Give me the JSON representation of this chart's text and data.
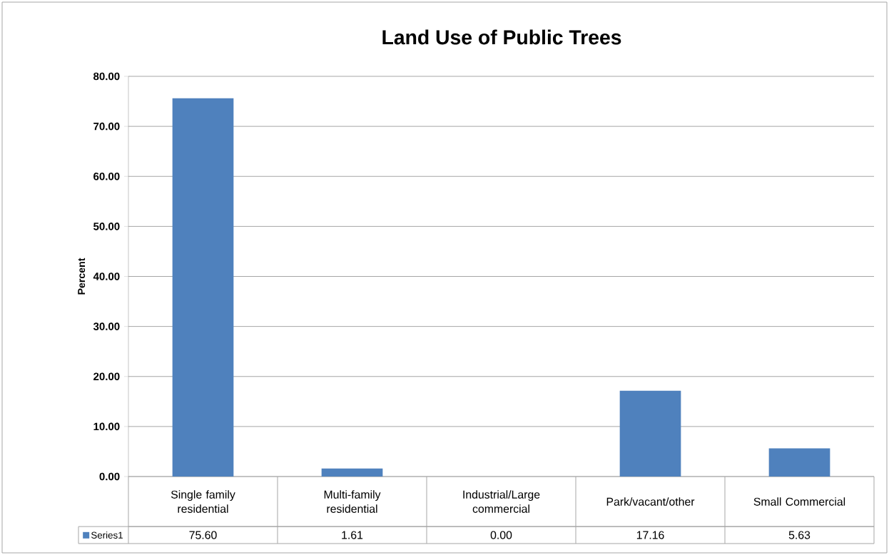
{
  "chart_data": {
    "type": "bar",
    "title": "Land Use of Public Trees",
    "ylabel": "Percent",
    "categories": [
      "Single family residential",
      "Multi-family residential",
      "Industrial/Large commercial",
      "Park/vacant/other",
      "Small Commercial"
    ],
    "series": [
      {
        "name": "Series1",
        "color": "#4f81bd",
        "values": [
          75.6,
          1.61,
          0.0,
          17.16,
          5.63
        ],
        "value_labels": [
          "75.60",
          "1.61",
          "0.00",
          "17.16",
          "5.63"
        ]
      }
    ],
    "ylim": [
      0,
      80
    ],
    "yticks": [
      {
        "value": 0,
        "label": "0.00"
      },
      {
        "value": 10,
        "label": "10.00"
      },
      {
        "value": 20,
        "label": "20.00"
      },
      {
        "value": 30,
        "label": "30.00"
      },
      {
        "value": 40,
        "label": "40.00"
      },
      {
        "value": 50,
        "label": "50.00"
      },
      {
        "value": 60,
        "label": "60.00"
      },
      {
        "value": 70,
        "label": "70.00"
      },
      {
        "value": 80,
        "label": "80.00"
      }
    ],
    "grid": "y",
    "legend": "bottom"
  }
}
